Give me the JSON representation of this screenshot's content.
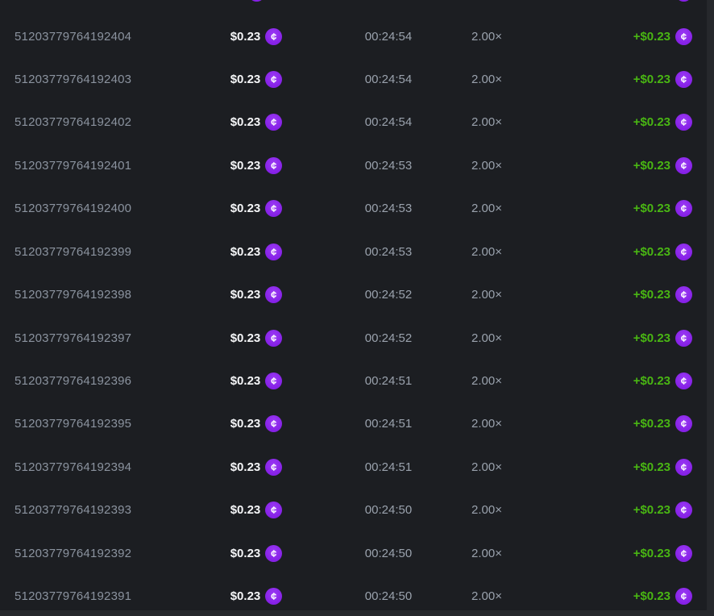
{
  "page": {
    "background": "#26282c",
    "table_background": "#1c1e22"
  },
  "colors": {
    "id_text": "#8b939f",
    "muted_text": "#9aa2ad",
    "amount_text": "#f5f6f8",
    "payout_green": "#49b613",
    "coin_purple": "#8520e6"
  },
  "coin": {
    "symbol": "¢"
  },
  "table": {
    "top_partial_row_visible": true,
    "rows": [
      {
        "id": "51203779764192404",
        "bet": "$0.23",
        "time": "00:24:54",
        "multiplier": "2.00×",
        "payout": "+$0.23"
      },
      {
        "id": "51203779764192403",
        "bet": "$0.23",
        "time": "00:24:54",
        "multiplier": "2.00×",
        "payout": "+$0.23"
      },
      {
        "id": "51203779764192402",
        "bet": "$0.23",
        "time": "00:24:54",
        "multiplier": "2.00×",
        "payout": "+$0.23"
      },
      {
        "id": "51203779764192401",
        "bet": "$0.23",
        "time": "00:24:53",
        "multiplier": "2.00×",
        "payout": "+$0.23"
      },
      {
        "id": "51203779764192400",
        "bet": "$0.23",
        "time": "00:24:53",
        "multiplier": "2.00×",
        "payout": "+$0.23"
      },
      {
        "id": "51203779764192399",
        "bet": "$0.23",
        "time": "00:24:53",
        "multiplier": "2.00×",
        "payout": "+$0.23"
      },
      {
        "id": "51203779764192398",
        "bet": "$0.23",
        "time": "00:24:52",
        "multiplier": "2.00×",
        "payout": "+$0.23"
      },
      {
        "id": "51203779764192397",
        "bet": "$0.23",
        "time": "00:24:52",
        "multiplier": "2.00×",
        "payout": "+$0.23"
      },
      {
        "id": "51203779764192396",
        "bet": "$0.23",
        "time": "00:24:51",
        "multiplier": "2.00×",
        "payout": "+$0.23"
      },
      {
        "id": "51203779764192395",
        "bet": "$0.23",
        "time": "00:24:51",
        "multiplier": "2.00×",
        "payout": "+$0.23"
      },
      {
        "id": "51203779764192394",
        "bet": "$0.23",
        "time": "00:24:51",
        "multiplier": "2.00×",
        "payout": "+$0.23"
      },
      {
        "id": "51203779764192393",
        "bet": "$0.23",
        "time": "00:24:50",
        "multiplier": "2.00×",
        "payout": "+$0.23"
      },
      {
        "id": "51203779764192392",
        "bet": "$0.23",
        "time": "00:24:50",
        "multiplier": "2.00×",
        "payout": "+$0.23"
      },
      {
        "id": "51203779764192391",
        "bet": "$0.23",
        "time": "00:24:50",
        "multiplier": "2.00×",
        "payout": "+$0.23"
      }
    ]
  }
}
